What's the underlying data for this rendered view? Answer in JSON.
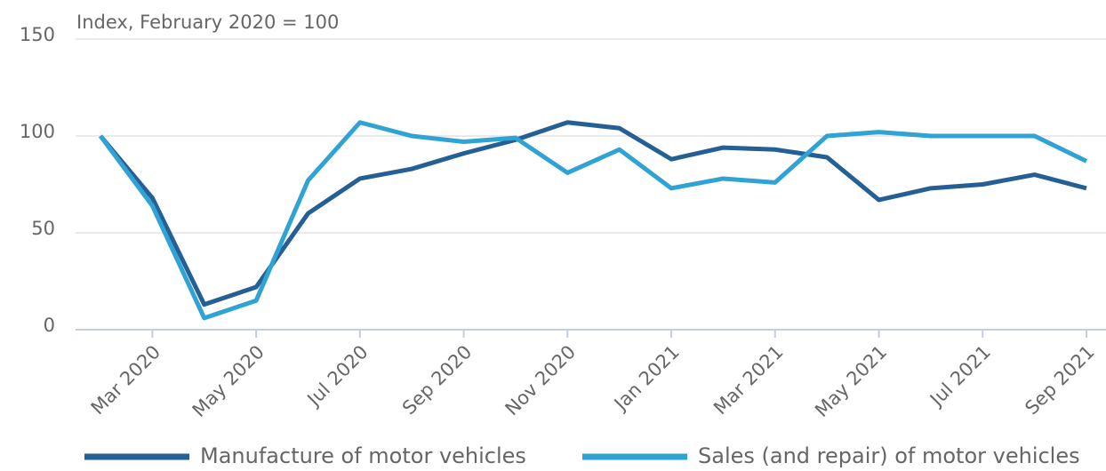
{
  "chart_data": {
    "type": "line",
    "title": "Index, February 2020 = 100",
    "categories": [
      null,
      "Mar 2020",
      null,
      "May 2020",
      null,
      "Jul 2020",
      null,
      "Sep 2020",
      null,
      "Nov 2020",
      null,
      "Jan 2021",
      null,
      "Mar 2021",
      null,
      "May 2021",
      null,
      "Jul 2021",
      null,
      "Sep 2021"
    ],
    "series": [
      {
        "name": "Manufacture of motor vehicles",
        "color": "#245f95",
        "values": [
          100,
          68,
          13,
          22,
          60,
          78,
          83,
          91,
          98,
          107,
          104,
          88,
          94,
          93,
          89,
          67,
          73,
          75,
          80,
          73
        ]
      },
      {
        "name": "Sales (and repair) of motor vehicles",
        "color": "#2fa3d3",
        "values": [
          100,
          64,
          6,
          15,
          77,
          107,
          100,
          97,
          99,
          81,
          93,
          73,
          78,
          76,
          100,
          102,
          100,
          100,
          100,
          87
        ]
      }
    ],
    "ylim": [
      0,
      150
    ],
    "yticks": [
      0,
      50,
      100,
      150
    ],
    "grid": true,
    "legend": "bottom"
  }
}
